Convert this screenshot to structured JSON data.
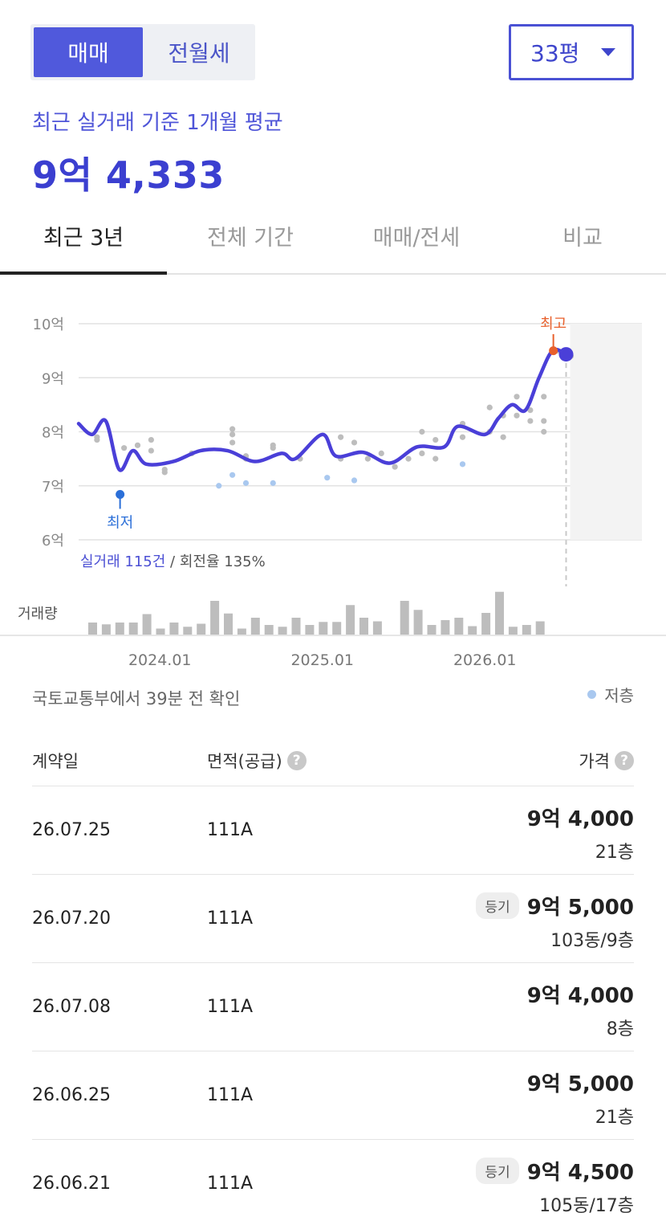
{
  "segment": {
    "buy_label": "매매",
    "rent_label": "전월세"
  },
  "size_select": {
    "value": "33평"
  },
  "summary": {
    "label": "최근 실거래 기준 1개월 평균",
    "value": "9억 4,333"
  },
  "tabs": [
    {
      "label": "최근 3년"
    },
    {
      "label": "전체 기간"
    },
    {
      "label": "매매/전세"
    },
    {
      "label": "비교"
    }
  ],
  "chart_data": {
    "type": "line",
    "y_unit": "억",
    "ylim": [
      6,
      10
    ],
    "y_ticks": [
      "10억",
      "9억",
      "8억",
      "7억",
      "6억"
    ],
    "x_ticks": [
      "2024.01",
      "2025.01",
      "2026.01"
    ],
    "x_range": [
      "2023.07",
      "2026.07"
    ],
    "grid": true,
    "trend_line": [
      [
        "2023.07",
        8.15
      ],
      [
        "2023.08",
        7.95
      ],
      [
        "2023.09",
        8.2
      ],
      [
        "2023.10",
        7.3
      ],
      [
        "2023.11",
        7.65
      ],
      [
        "2023.12",
        7.4
      ],
      [
        "2024.02",
        7.45
      ],
      [
        "2024.04",
        7.65
      ],
      [
        "2024.06",
        7.65
      ],
      [
        "2024.08",
        7.45
      ],
      [
        "2024.10",
        7.6
      ],
      [
        "2024.11",
        7.5
      ],
      [
        "2025.01",
        7.95
      ],
      [
        "2025.02",
        7.55
      ],
      [
        "2025.04",
        7.62
      ],
      [
        "2025.06",
        7.42
      ],
      [
        "2025.08",
        7.72
      ],
      [
        "2025.10",
        7.72
      ],
      [
        "2025.11",
        8.1
      ],
      [
        "2026.01",
        7.95
      ],
      [
        "2026.02",
        8.25
      ],
      [
        "2026.03",
        8.5
      ],
      [
        "2026.04",
        8.4
      ],
      [
        "2026.05",
        9.0
      ],
      [
        "2026.06",
        9.5
      ],
      [
        "2026.07",
        9.4333
      ]
    ],
    "scatter_normal": [
      [
        "2023.08",
        7.9
      ],
      [
        "2023.08",
        7.85
      ],
      [
        "2023.10",
        7.7
      ],
      [
        "2023.11",
        7.75
      ],
      [
        "2023.12",
        7.85
      ],
      [
        "2023.12",
        7.65
      ],
      [
        "2024.01",
        7.25
      ],
      [
        "2024.01",
        7.3
      ],
      [
        "2024.03",
        7.6
      ],
      [
        "2024.06",
        8.05
      ],
      [
        "2024.06",
        7.95
      ],
      [
        "2024.06",
        7.8
      ],
      [
        "2024.07",
        7.55
      ],
      [
        "2024.07",
        7.5
      ],
      [
        "2024.09",
        7.75
      ],
      [
        "2024.09",
        7.7
      ],
      [
        "2024.11",
        7.5
      ],
      [
        "2025.02",
        7.9
      ],
      [
        "2025.02",
        7.5
      ],
      [
        "2025.03",
        7.8
      ],
      [
        "2025.04",
        7.5
      ],
      [
        "2025.05",
        7.6
      ],
      [
        "2025.06",
        7.35
      ],
      [
        "2025.07",
        7.5
      ],
      [
        "2025.08",
        8.0
      ],
      [
        "2025.08",
        7.6
      ],
      [
        "2025.09",
        7.85
      ],
      [
        "2025.09",
        7.5
      ],
      [
        "2025.11",
        8.15
      ],
      [
        "2025.11",
        7.9
      ],
      [
        "2026.01",
        8.45
      ],
      [
        "2026.01",
        8.0
      ],
      [
        "2026.02",
        8.3
      ],
      [
        "2026.02",
        7.9
      ],
      [
        "2026.03",
        8.65
      ],
      [
        "2026.03",
        8.3
      ],
      [
        "2026.04",
        8.4
      ],
      [
        "2026.04",
        8.2
      ],
      [
        "2026.05",
        8.65
      ],
      [
        "2026.05",
        8.2
      ],
      [
        "2026.05",
        8.0
      ],
      [
        "2026.06",
        9.5
      ],
      [
        "2026.07",
        9.4
      ]
    ],
    "scatter_low_floor": [
      [
        "2024.05",
        7.0
      ],
      [
        "2024.06",
        7.2
      ],
      [
        "2024.07",
        7.05
      ],
      [
        "2024.09",
        7.05
      ],
      [
        "2025.01",
        7.15
      ],
      [
        "2025.03",
        7.1
      ],
      [
        "2025.11",
        7.4
      ]
    ],
    "annotations": [
      {
        "label": "최고",
        "x": "2026.06",
        "y": 9.5
      },
      {
        "label": "최저",
        "x": "2023.10",
        "y": 6.9
      }
    ],
    "stats": {
      "prefix": "실거래 115건",
      "suffix": " / 회전율 135%"
    },
    "volume_label": "거래량",
    "volume": [
      2,
      1.7,
      2,
      2,
      3.4,
      1,
      2,
      1.3,
      1.8,
      5.6,
      3.5,
      1,
      2.8,
      1.6,
      1.3,
      2.8,
      1.6,
      2.1,
      2.1,
      4.9,
      2.8,
      2.2,
      0,
      5.6,
      4.1,
      1.6,
      2.4,
      2.8,
      1.4,
      3.6,
      7.1,
      1.3,
      1.6,
      2.2
    ]
  },
  "updated_text": "국토교통부에서 39분 전 확인",
  "legend": {
    "low_floor": "저층"
  },
  "table": {
    "headers": {
      "date": "계약일",
      "area": "면적(공급)",
      "price": "가격",
      "help": "?"
    },
    "rows": [
      {
        "date": "26.07.25",
        "area": "111A",
        "price": "9억 4,000",
        "floor": "21층",
        "badge": ""
      },
      {
        "date": "26.07.20",
        "area": "111A",
        "price": "9억 5,000",
        "floor": "103동/9층",
        "badge": "등기"
      },
      {
        "date": "26.07.08",
        "area": "111A",
        "price": "9억 4,000",
        "floor": "8층",
        "badge": ""
      },
      {
        "date": "26.06.25",
        "area": "111A",
        "price": "9억 5,000",
        "floor": "21층",
        "badge": ""
      },
      {
        "date": "26.06.21",
        "area": "111A",
        "price": "9억 4,500",
        "floor": "105동/17층",
        "badge": "등기"
      }
    ]
  }
}
